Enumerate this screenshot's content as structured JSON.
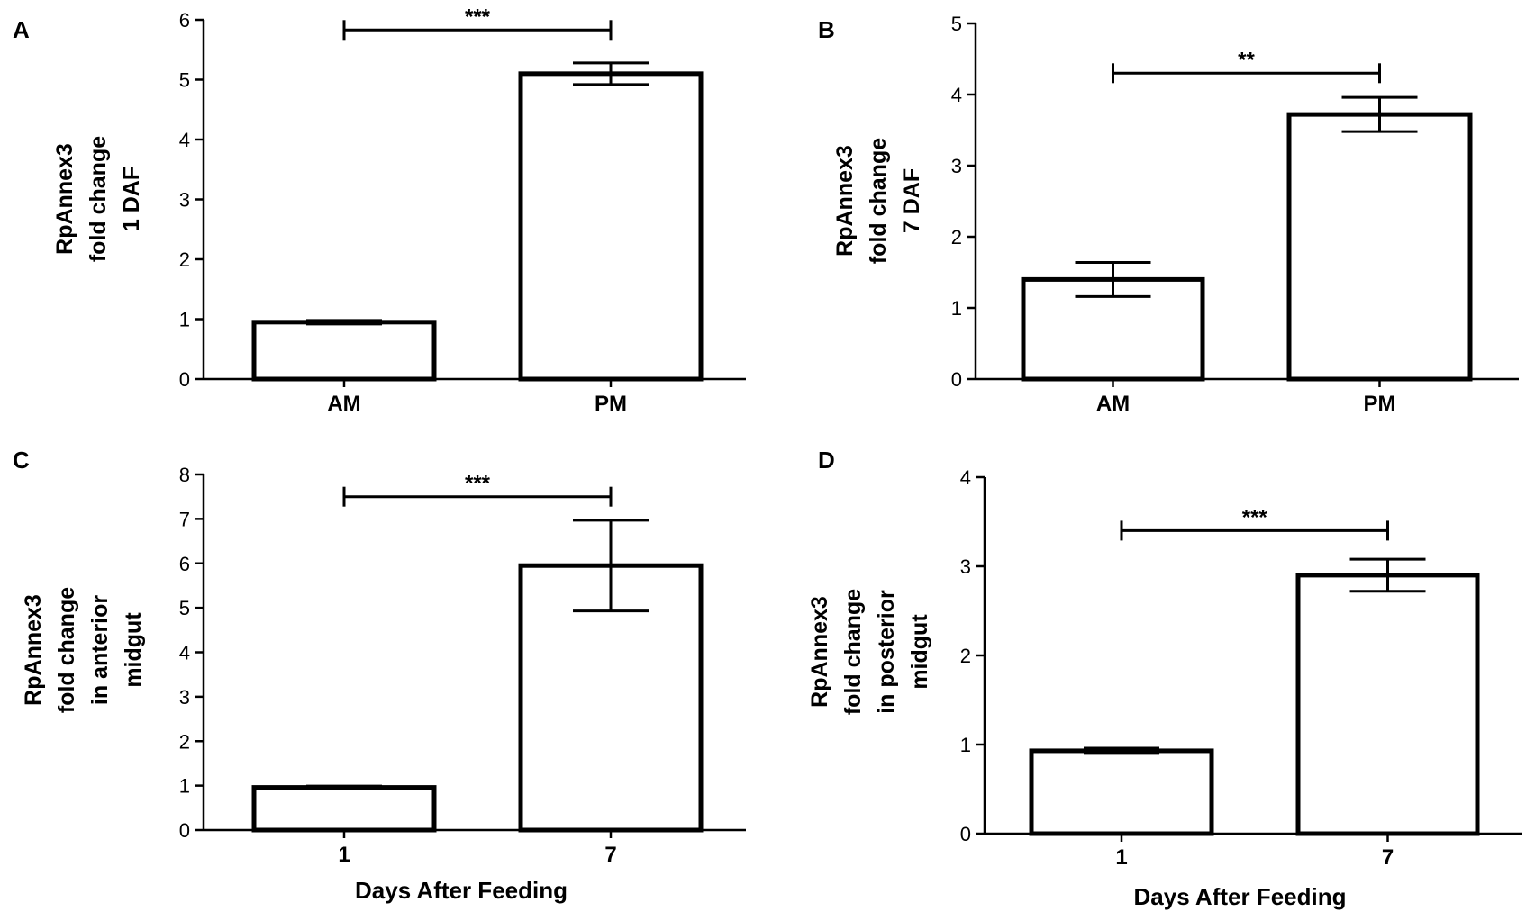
{
  "chart_data": [
    {
      "panel": "A",
      "type": "bar",
      "categories": [
        "AM",
        "PM"
      ],
      "values": [
        0.95,
        5.1
      ],
      "errors": [
        0.03,
        0.18
      ],
      "ylabel_lines": [
        "RpAnnex3",
        "fold change",
        "1 DAF"
      ],
      "xlabel": "",
      "ylim": [
        0,
        6
      ],
      "yticks": [
        "0",
        "1",
        "2",
        "3",
        "4",
        "5",
        "6"
      ],
      "significance": "***",
      "sig_level": 5.83
    },
    {
      "panel": "B",
      "type": "bar",
      "categories": [
        "AM",
        "PM"
      ],
      "values": [
        1.4,
        3.72
      ],
      "errors": [
        0.24,
        0.24
      ],
      "ylabel_lines": [
        "RpAnnex3",
        "fold change",
        "7 DAF"
      ],
      "xlabel": "",
      "ylim": [
        0,
        5
      ],
      "yticks": [
        "0",
        "1",
        "2",
        "3",
        "4",
        "5"
      ],
      "significance": "**",
      "sig_level": 4.3
    },
    {
      "panel": "C",
      "type": "bar",
      "categories": [
        "1",
        "7"
      ],
      "values": [
        0.96,
        5.95
      ],
      "errors": [
        0.03,
        1.02
      ],
      "ylabel_lines": [
        "RpAnnex3",
        "fold change",
        "in anterior",
        "midgut"
      ],
      "xlabel": "Days After Feeding",
      "ylim": [
        0,
        8
      ],
      "yticks": [
        "0",
        "1",
        "2",
        "3",
        "4",
        "5",
        "6",
        "7",
        "8"
      ],
      "significance": "***",
      "sig_level": 7.5
    },
    {
      "panel": "D",
      "type": "bar",
      "categories": [
        "1",
        "7"
      ],
      "values": [
        0.93,
        2.9
      ],
      "errors": [
        0.03,
        0.18
      ],
      "ylabel_lines": [
        "RpAnnex3",
        "fold change",
        "in posterior",
        "midgut"
      ],
      "xlabel": "Days After Feeding",
      "ylim": [
        0,
        4
      ],
      "yticks": [
        "0",
        "1",
        "2",
        "3",
        "4"
      ],
      "significance": "***",
      "sig_level": 3.4
    }
  ]
}
